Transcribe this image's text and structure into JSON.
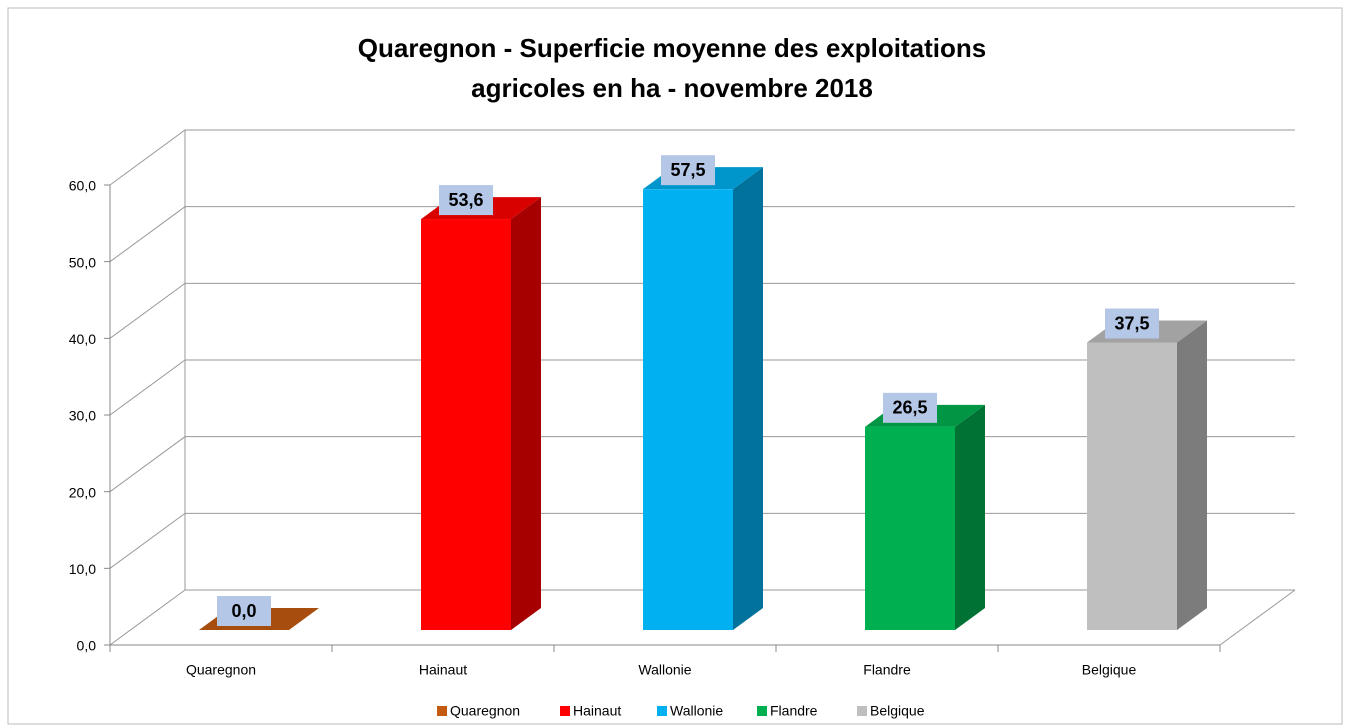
{
  "chart_data": {
    "type": "bar3d",
    "title": "Quaregnon - Superficie moyenne des exploitations agricoles en ha - novembre 2018",
    "categories": [
      "Quaregnon",
      "Hainaut",
      "Wallonie",
      "Flandre",
      "Belgique"
    ],
    "values": [
      0,
      53.6,
      57.5,
      26.5,
      37.5
    ],
    "value_labels": [
      "0,0",
      "53,6",
      "57,5",
      "26,5",
      "37,5"
    ],
    "colors": [
      "#c55a11",
      "#ff0000",
      "#00b0f0",
      "#00b050",
      "#bfbfbf"
    ],
    "ylim": [
      0,
      60
    ],
    "yticks": [
      {
        "value": 0,
        "label": "0,0"
      },
      {
        "value": 10,
        "label": "10,0"
      },
      {
        "value": 20,
        "label": "20,0"
      },
      {
        "value": 30,
        "label": "30,0"
      },
      {
        "value": 40,
        "label": "40,0"
      },
      {
        "value": 50,
        "label": "50,0"
      },
      {
        "value": 60,
        "label": "60,0"
      }
    ],
    "grid": true,
    "legend": "bottom"
  }
}
